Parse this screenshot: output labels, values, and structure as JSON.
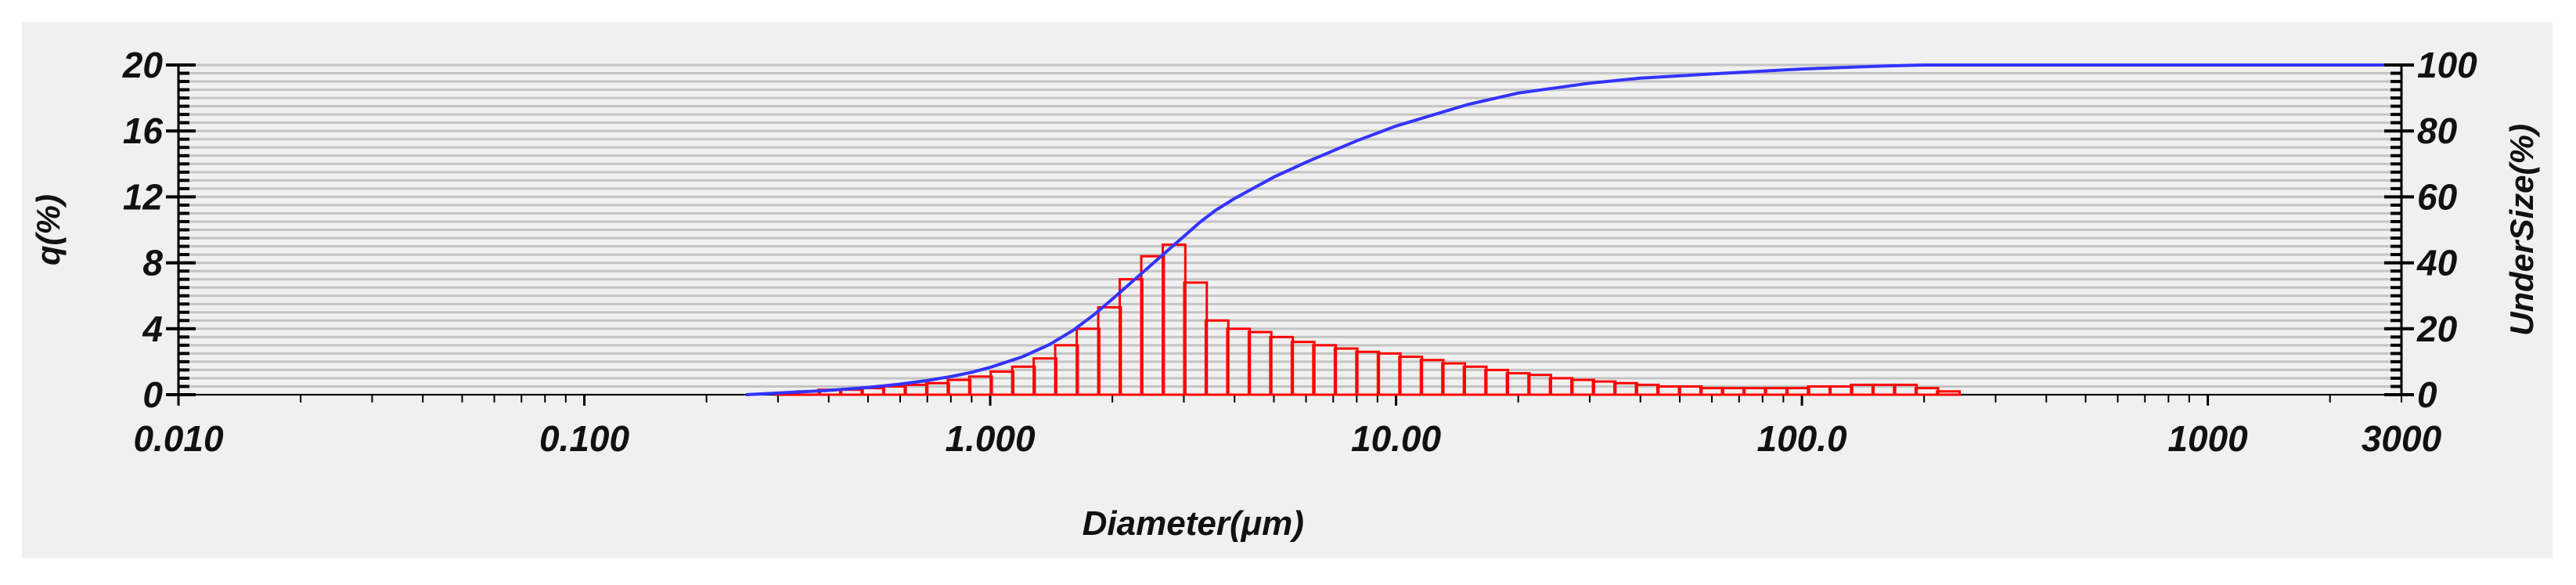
{
  "chart_data": {
    "type": "bar",
    "xlabel": "Diameter(μm)",
    "ylabel": "q(%)",
    "y2label": "UnderSize(%)",
    "x_scale": "log",
    "xlim": [
      0.01,
      3000
    ],
    "ylim": [
      0,
      20
    ],
    "y2lim": [
      0,
      100
    ],
    "x_tick_labels": [
      "0.010",
      "0.100",
      "1.000",
      "10.00",
      "100.0",
      "1000",
      "3000"
    ],
    "x_tick_values": [
      0.01,
      0.1,
      1,
      10,
      100,
      1000,
      3000
    ],
    "y_tick_labels": [
      "0",
      "4",
      "8",
      "12",
      "16",
      "20"
    ],
    "y2_tick_labels": [
      "0",
      "20",
      "40",
      "60",
      "80",
      "100"
    ],
    "grid": true,
    "colors": {
      "q_bars": "#ff0000",
      "undersize_line": "#3333ff",
      "background": "#f0f0f0",
      "grid": "#c4c4c4"
    },
    "series": [
      {
        "type": "bar",
        "axis": "left",
        "x": [
          0.262,
          0.296,
          0.335,
          0.378,
          0.427,
          0.482,
          0.545,
          0.616,
          0.696,
          0.786,
          0.888,
          1.003,
          1.133,
          1.28,
          1.446,
          1.634,
          1.846,
          2.085,
          2.356,
          2.662,
          3.007,
          3.397,
          3.838,
          4.336,
          4.899,
          5.535,
          6.253,
          7.065,
          7.982,
          9.018,
          10.19,
          11.51,
          13.0,
          14.69,
          16.6,
          18.75,
          21.19,
          23.94,
          27.04,
          30.55,
          34.52,
          39.0,
          44.06,
          49.78,
          56.24,
          63.54,
          71.79,
          81.1,
          91.63,
          103.5,
          117.0,
          132.1,
          149.3,
          168.7,
          190.6,
          215.3
        ],
        "values": [
          0.0,
          0.1,
          0.2,
          0.3,
          0.3,
          0.4,
          0.5,
          0.6,
          0.7,
          0.9,
          1.1,
          1.4,
          1.7,
          2.2,
          3.0,
          4.0,
          5.3,
          7.0,
          8.4,
          9.1,
          6.8,
          4.5,
          4.0,
          3.8,
          3.5,
          3.2,
          3.0,
          2.8,
          2.6,
          2.5,
          2.3,
          2.1,
          1.9,
          1.7,
          1.5,
          1.3,
          1.2,
          1.0,
          0.9,
          0.8,
          0.7,
          0.6,
          0.5,
          0.5,
          0.4,
          0.4,
          0.4,
          0.4,
          0.4,
          0.5,
          0.5,
          0.6,
          0.6,
          0.6,
          0.4,
          0.2
        ]
      },
      {
        "type": "line",
        "axis": "right",
        "x": [
          0.25,
          0.3,
          0.4,
          0.5,
          0.6,
          0.7,
          0.8,
          0.9,
          1.0,
          1.2,
          1.4,
          1.6,
          1.8,
          2.0,
          2.2,
          2.5,
          2.8,
          3.0,
          3.3,
          3.6,
          4.0,
          5.0,
          6.0,
          8.0,
          10.0,
          15.0,
          20.0,
          30.0,
          40.0,
          60.0,
          100.0,
          150.0,
          200.0,
          300.0,
          1000.0,
          3000.0
        ],
        "values": [
          0.0,
          0.5,
          1.3,
          2.2,
          3.2,
          4.3,
          5.5,
          6.8,
          8.3,
          11.5,
          15.2,
          19.5,
          24.2,
          29.0,
          33.5,
          39.5,
          44.8,
          48.0,
          52.5,
          56.0,
          59.5,
          66.0,
          70.5,
          77.0,
          81.5,
          88.0,
          91.5,
          94.5,
          96.0,
          97.3,
          98.8,
          99.6,
          100.0,
          100.0,
          100.0,
          100.0
        ]
      }
    ]
  }
}
